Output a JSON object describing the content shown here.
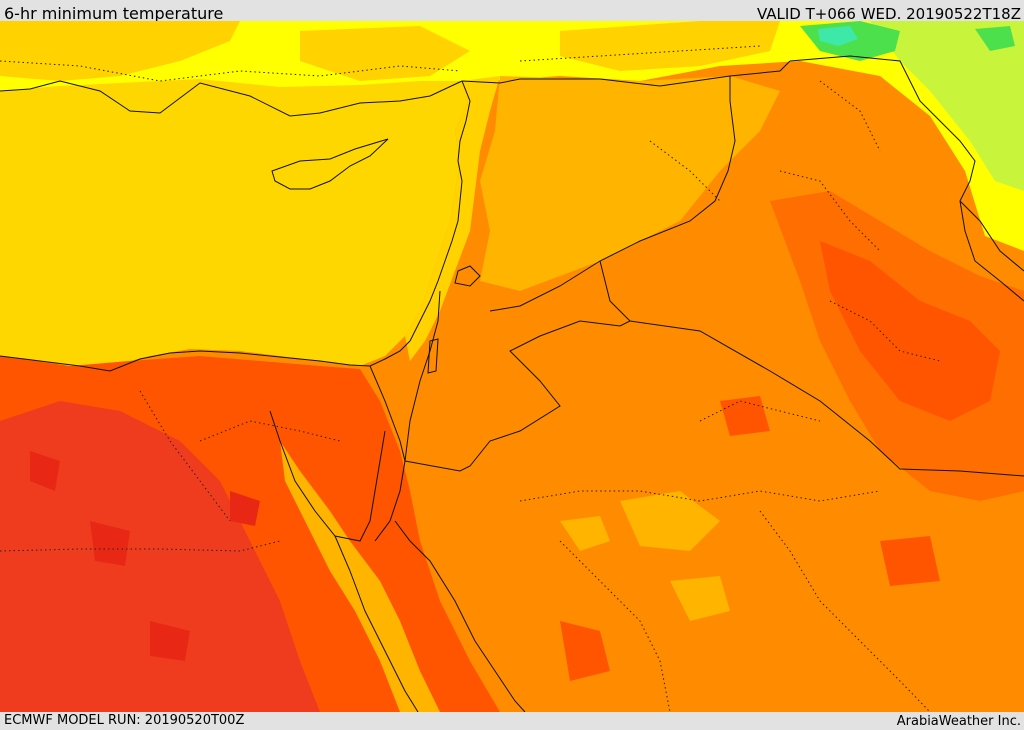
{
  "header": {
    "title": "6-hr minimum temperature",
    "valid_time": "VALID T+066 WED. 20190522T18Z"
  },
  "footer": {
    "model_run": "ECMWF MODEL RUN: 20190520T00Z",
    "credit": "ArabiaWeather Inc."
  },
  "map": {
    "field": "6-hr minimum temperature",
    "colors": {
      "sea": "#ffd700",
      "cool_yellow": "#ffff00",
      "light_green": "#c8f53c",
      "green": "#4de04d",
      "teal": "#3ee8a8",
      "gold": "#ffd200",
      "light_orange": "#ffb400",
      "orange": "#ff8c00",
      "dark_orange": "#ff6e00",
      "red_orange": "#ff5500",
      "red": "#f03c1e"
    }
  }
}
